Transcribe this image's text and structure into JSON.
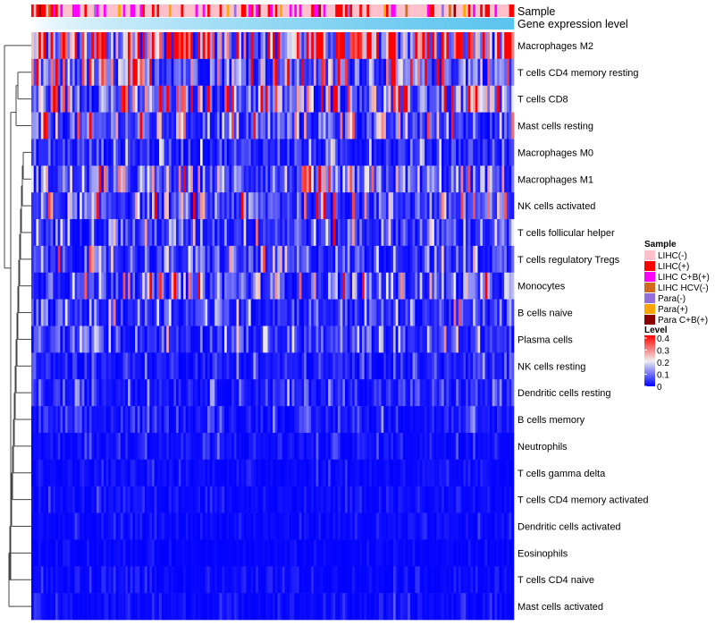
{
  "chart_data": {
    "type": "heatmap",
    "annotation_tracks": [
      "Sample",
      "Gene expression level"
    ],
    "rows": [
      {
        "label": "Macrophages M2",
        "mean": 0.3
      },
      {
        "label": "T cells CD4 memory resting",
        "mean": 0.15
      },
      {
        "label": "T cells CD8",
        "mean": 0.15
      },
      {
        "label": "Mast cells resting",
        "mean": 0.09
      },
      {
        "label": "Macrophages M0",
        "mean": 0.05
      },
      {
        "label": "Macrophages M1",
        "mean": 0.1
      },
      {
        "label": "NK cells activated",
        "mean": 0.09
      },
      {
        "label": "T cells follicular helper",
        "mean": 0.08
      },
      {
        "label": "T cells regulatory  Tregs",
        "mean": 0.07
      },
      {
        "label": "Monocytes",
        "mean": 0.1
      },
      {
        "label": "B cells naive",
        "mean": 0.06
      },
      {
        "label": "Plasma cells",
        "mean": 0.06
      },
      {
        "label": "NK cells resting",
        "mean": 0.03
      },
      {
        "label": "Dendritic cells resting",
        "mean": 0.04
      },
      {
        "label": "B cells memory",
        "mean": 0.025
      },
      {
        "label": "Neutrophils",
        "mean": 0.02
      },
      {
        "label": "T cells gamma delta",
        "mean": 0.012
      },
      {
        "label": "T cells CD4 memory activated",
        "mean": 0.012
      },
      {
        "label": "Dendritic cells activated",
        "mean": 0.01
      },
      {
        "label": "Eosinophils",
        "mean": 0.006
      },
      {
        "label": "T cells CD4 naive",
        "mean": 0.01
      },
      {
        "label": "Mast cells activated",
        "mean": 0.012
      }
    ],
    "n_columns": 200,
    "sample_legend": {
      "title": "Sample",
      "entries": [
        {
          "label": "LIHC(-)",
          "color": "#FFC0CB",
          "share": 0.62
        },
        {
          "label": "LIHC(+)",
          "color": "#FF0000",
          "share": 0.12
        },
        {
          "label": "LIHC C+B(+)",
          "color": "#FF00FF",
          "share": 0.14
        },
        {
          "label": "LIHC HCV(-)",
          "color": "#D2691E",
          "share": 0.02
        },
        {
          "label": "Para(-)",
          "color": "#9370DB",
          "share": 0.03
        },
        {
          "label": "Para(+)",
          "color": "#FFA500",
          "share": 0.05
        },
        {
          "label": "Para C+B(+)",
          "color": "#8B0000",
          "share": 0.02
        }
      ]
    },
    "gene_level_colors": [
      "#FFFFFF",
      "#5BC4EE"
    ],
    "level_legend": {
      "title": "Level",
      "ticks": [
        "0.4",
        "0.3",
        "0.2",
        "0.1",
        "0"
      ],
      "range": [
        0,
        0.4
      ],
      "colors": [
        "#0000FF",
        "#EEEEEE",
        "#FF0000"
      ]
    }
  }
}
